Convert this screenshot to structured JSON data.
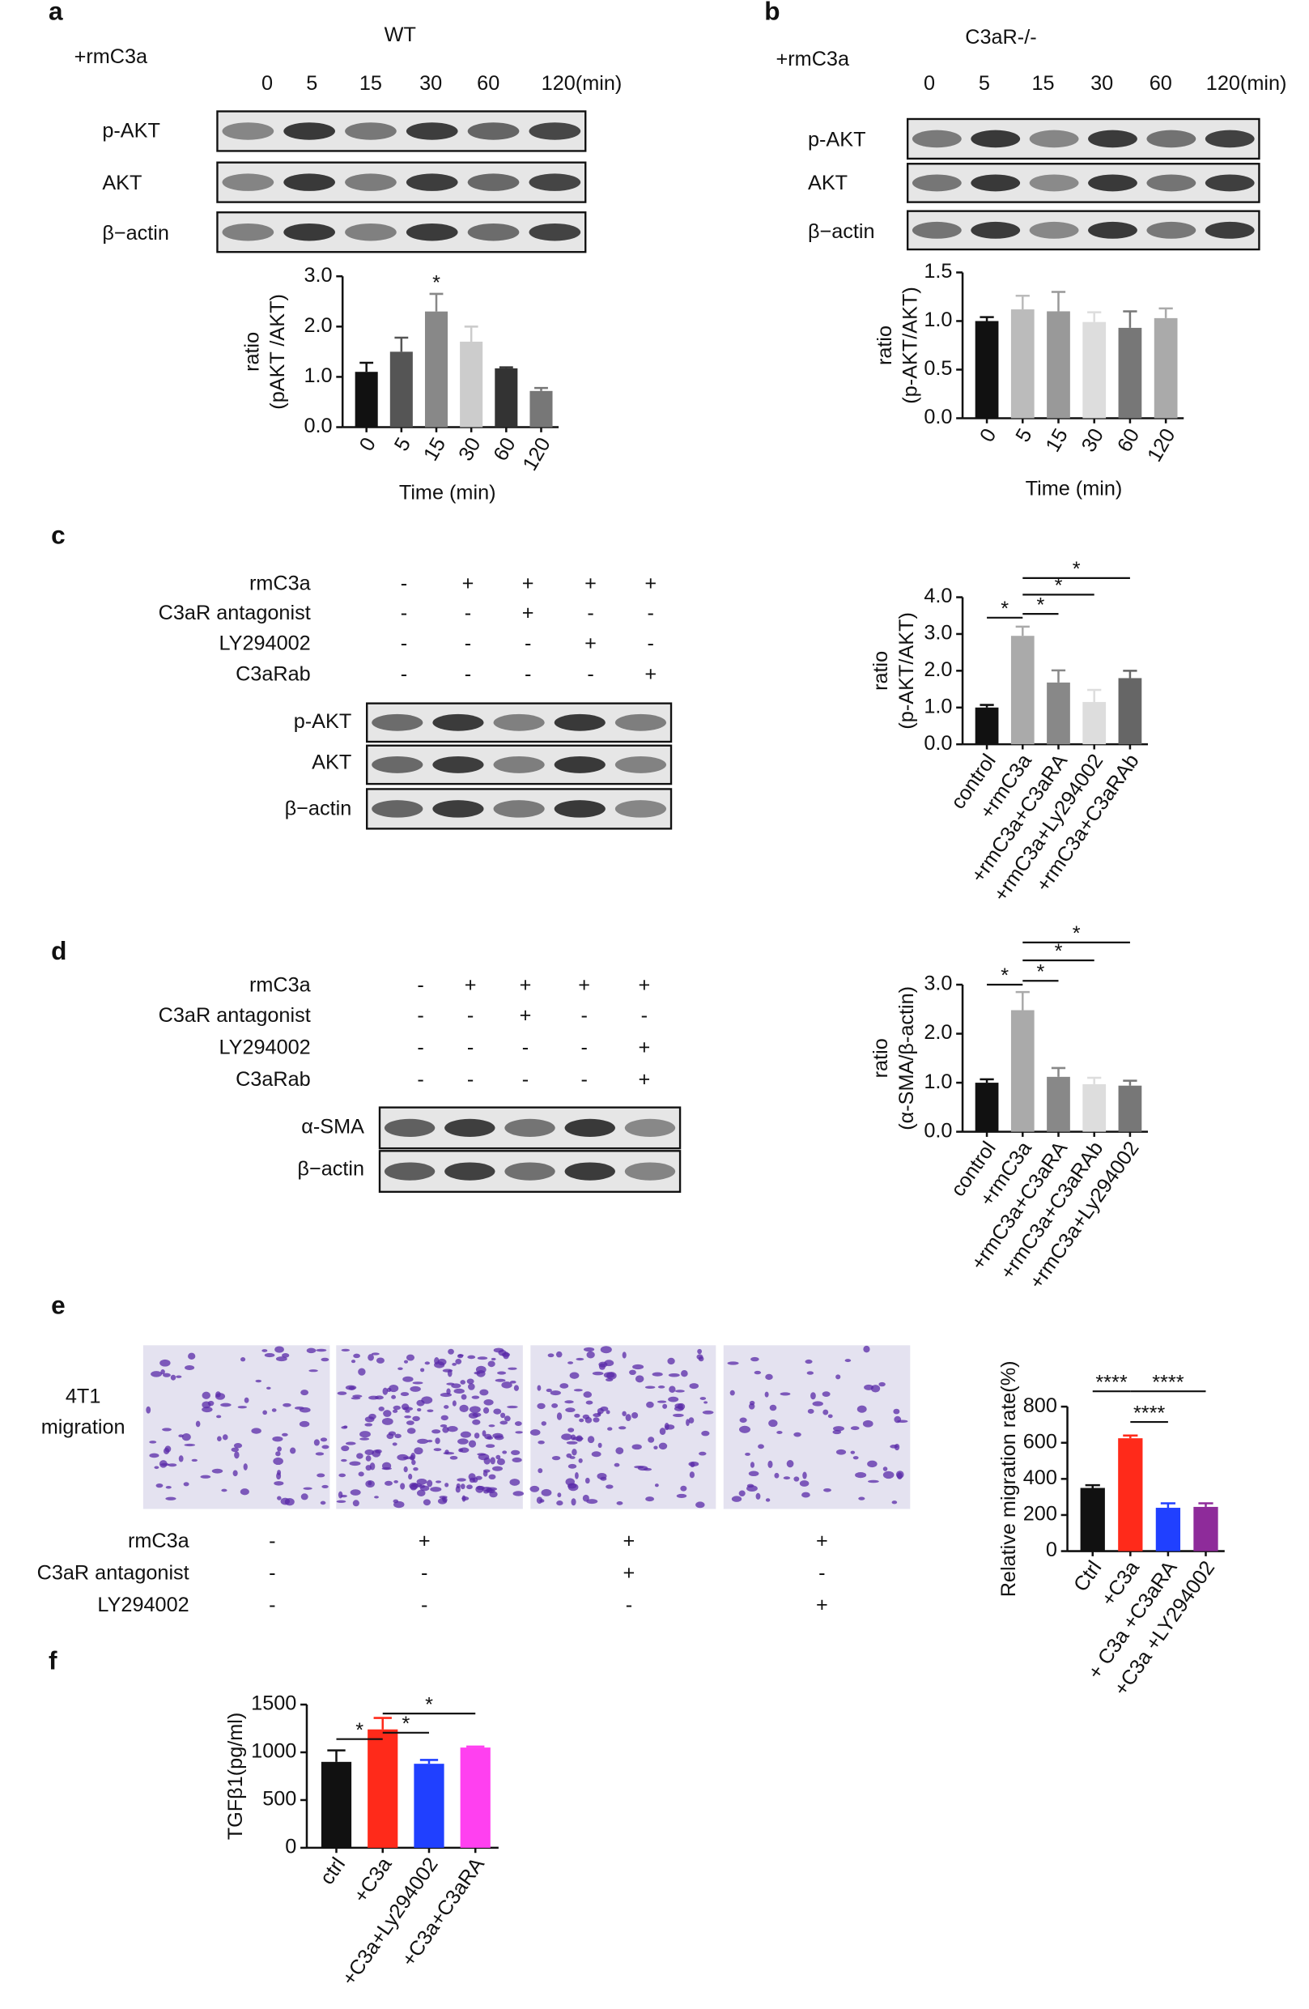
{
  "panels": {
    "a": {
      "letter": "a",
      "title": "WT",
      "treatment": "+rmC3a",
      "lanes": [
        "0",
        "5",
        "15",
        "30",
        "60",
        "120(min)"
      ],
      "bands": [
        "p-AKT",
        "AKT",
        "β−actin"
      ]
    },
    "b": {
      "letter": "b",
      "title": "C3aR-/-",
      "treatment": "+rmC3a",
      "lanes": [
        "0",
        "5",
        "15",
        "30",
        "60",
        "120(min)"
      ],
      "bands": [
        "p-AKT",
        "AKT",
        "β−actin"
      ]
    },
    "c": {
      "letter": "c",
      "conditions": [
        {
          "name": "rmC3a",
          "signs": [
            "-",
            "+",
            "+",
            "+",
            "+"
          ]
        },
        {
          "name": "C3aR antagonist",
          "signs": [
            "-",
            "-",
            "+",
            "-",
            "-"
          ]
        },
        {
          "name": "LY294002",
          "signs": [
            "-",
            "-",
            "-",
            "+",
            "-"
          ]
        },
        {
          "name": "C3aRab",
          "signs": [
            "-",
            "-",
            "-",
            "-",
            "+"
          ]
        }
      ],
      "bands": [
        "p-AKT",
        "AKT",
        "β−actin"
      ]
    },
    "d": {
      "letter": "d",
      "conditions": [
        {
          "name": "rmC3a",
          "signs": [
            "-",
            "+",
            "+",
            "+",
            "+"
          ]
        },
        {
          "name": "C3aR antagonist",
          "signs": [
            "-",
            "-",
            "+",
            "-",
            "-"
          ]
        },
        {
          "name": "LY294002",
          "signs": [
            "-",
            "-",
            "-",
            "-",
            "+"
          ]
        },
        {
          "name": "C3aRab",
          "signs": [
            "-",
            "-",
            "-",
            "-",
            "+"
          ]
        }
      ],
      "bands": [
        "α-SMA",
        "β−actin"
      ]
    },
    "e": {
      "letter": "e",
      "label": [
        "4T1",
        "migration"
      ],
      "conditions": [
        {
          "name": "rmC3a",
          "signs": [
            "-",
            "+",
            "+",
            "+"
          ]
        },
        {
          "name": "C3aR antagonist",
          "signs": [
            "-",
            "-",
            "+",
            "-"
          ]
        },
        {
          "name": "LY294002",
          "signs": [
            "-",
            "-",
            "-",
            "+"
          ]
        }
      ]
    },
    "f": {
      "letter": "f"
    }
  },
  "chart_data": [
    {
      "type": "bar",
      "ylabel": [
        "ratio",
        "(pAKT /AKT)"
      ],
      "xlabel": "Time (min)",
      "categories": [
        "0",
        "5",
        "15",
        "30",
        "60",
        "120"
      ],
      "values": [
        1.1,
        1.5,
        2.3,
        1.7,
        1.17,
        0.72
      ],
      "errors": [
        0.18,
        0.28,
        0.35,
        0.3,
        0.02,
        0.06
      ],
      "colors": [
        "#111111",
        "#555555",
        "#888888",
        "#cccccc",
        "#333333",
        "#777777"
      ],
      "ylim": [
        0,
        3
      ],
      "yticks": [
        {
          "value": 0,
          "label": "0.0"
        },
        {
          "value": 1,
          "label": "1.0"
        },
        {
          "value": 2,
          "label": "2.0"
        },
        {
          "value": 3,
          "label": "3.0"
        }
      ],
      "annotations": [
        "*"
      ]
    },
    {
      "type": "bar",
      "ylabel": [
        "ratio",
        "(p-AKT/AKT)"
      ],
      "xlabel": "Time (min)",
      "categories": [
        "0",
        "5",
        "15",
        "30",
        "60",
        "120"
      ],
      "values": [
        1.0,
        1.12,
        1.1,
        0.99,
        0.93,
        1.03
      ],
      "errors": [
        0.04,
        0.14,
        0.2,
        0.1,
        0.17,
        0.1
      ],
      "colors": [
        "#111111",
        "#bbbbbb",
        "#999999",
        "#dddddd",
        "#777777",
        "#aaaaaa"
      ],
      "ylim": [
        0,
        1.5
      ],
      "yticks": [
        {
          "value": 0,
          "label": "0.0"
        },
        {
          "value": 0.5,
          "label": "0.5"
        },
        {
          "value": 1,
          "label": "1.0"
        },
        {
          "value": 1.5,
          "label": "1.5"
        }
      ],
      "annotations": []
    },
    {
      "type": "bar",
      "ylabel": [
        "ratio",
        "(p-AKT/AKT)"
      ],
      "categories": [
        "control",
        "+rmC3a",
        "+rmC3a+C3aRA",
        "+rmC3a+Ly294002",
        "+rmC3a+C3aRAb"
      ],
      "values": [
        1.0,
        2.95,
        1.68,
        1.15,
        1.8
      ],
      "errors": [
        0.07,
        0.25,
        0.33,
        0.33,
        0.2
      ],
      "colors": [
        "#111111",
        "#aaaaaa",
        "#888888",
        "#dddddd",
        "#666666"
      ],
      "ylim": [
        0,
        4
      ],
      "yticks": [
        {
          "value": 0,
          "label": "0.0"
        },
        {
          "value": 1,
          "label": "1.0"
        },
        {
          "value": 2,
          "label": "2.0"
        },
        {
          "value": 3,
          "label": "3.0"
        },
        {
          "value": 4,
          "label": "4.0"
        }
      ],
      "annotations": [
        "*",
        "*",
        "*",
        "*"
      ]
    },
    {
      "type": "bar",
      "ylabel": [
        "ratio",
        "(α-SMA/β-actin)"
      ],
      "categories": [
        "control",
        "+rmC3a",
        "+rmC3a+C3aRA",
        "+rmC3a+C3aRAb",
        "+rmC3a+Ly294002"
      ],
      "values": [
        1.0,
        2.48,
        1.12,
        0.97,
        0.94
      ],
      "errors": [
        0.07,
        0.37,
        0.18,
        0.13,
        0.1
      ],
      "colors": [
        "#111111",
        "#aaaaaa",
        "#888888",
        "#dddddd",
        "#777777"
      ],
      "ylim": [
        0,
        3
      ],
      "yticks": [
        {
          "value": 0,
          "label": "0.0"
        },
        {
          "value": 1,
          "label": "1.0"
        },
        {
          "value": 2,
          "label": "2.0"
        },
        {
          "value": 3,
          "label": "3.0"
        }
      ],
      "annotations": [
        "*",
        "*",
        "*",
        "*"
      ]
    },
    {
      "type": "bar",
      "ylabel": [
        "Relative migration rate(%)"
      ],
      "categories": [
        "Ctrl",
        "+C3a",
        "+ C3a +C3aRA",
        "+C3a +LY294002"
      ],
      "values": [
        350,
        625,
        240,
        245
      ],
      "errors": [
        15,
        15,
        25,
        20
      ],
      "colors": [
        "#111111",
        "#ff2a1a",
        "#2040ff",
        "#8e2b9a"
      ],
      "ylim": [
        0,
        800
      ],
      "yticks": [
        0,
        200,
        400,
        600,
        800
      ],
      "annotations": [
        "****",
        "****",
        "****"
      ]
    },
    {
      "type": "bar",
      "ylabel": [
        "TGFβ1(pg/ml)"
      ],
      "categories": [
        "ctrl",
        "+C3a",
        "+C3a+Ly294002",
        "+C3a+C3aRA"
      ],
      "values": [
        900,
        1240,
        880,
        1050
      ],
      "errors": [
        120,
        120,
        40,
        10
      ],
      "colors": [
        "#111111",
        "#ff2a1a",
        "#2040ff",
        "#ff40f0"
      ],
      "ylim": [
        0,
        1500
      ],
      "yticks": [
        0,
        500,
        1000,
        1500
      ],
      "annotations": [
        "*",
        "*",
        "*"
      ]
    }
  ]
}
